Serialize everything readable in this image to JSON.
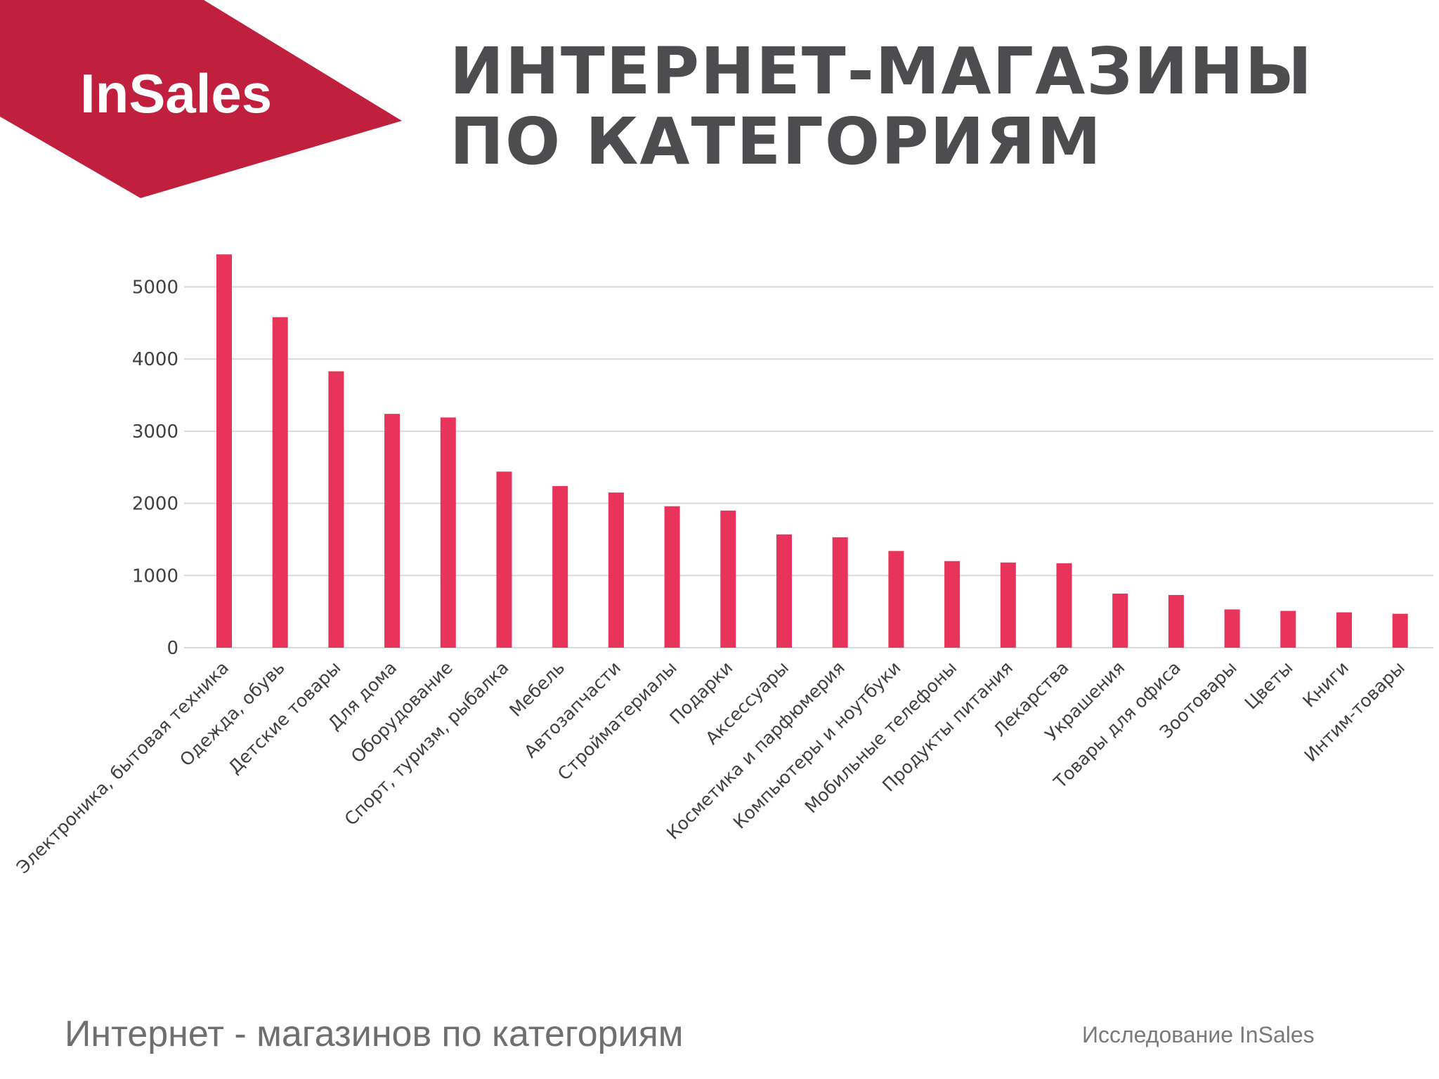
{
  "brand": {
    "logo_text": "InSales",
    "color": "#c0203d"
  },
  "title": "ИНТЕРНЕТ-МАГАЗИНЫ ПО КАТЕГОРИЯМ",
  "footer": {
    "caption": "Интернет - магазинов по категориям",
    "source": "Исследование InSales"
  },
  "chart_data": {
    "type": "bar",
    "categories": [
      "Электроника, бытовая техника",
      "Одежда, обувь",
      "Детские товары",
      "Для дома",
      "Оборудование",
      "Спорт, туризм, рыбалка",
      "Мебель",
      "Автозапчасти",
      "Стройматериалы",
      "Подарки",
      "Аксессуары",
      "Косметика и парфюмерия",
      "Компьютеры и ноутбуки",
      "Мобильные телефоны",
      "Продукты питания",
      "Лекарства",
      "Украшения",
      "Товары для офиса",
      "Зоотовары",
      "Цветы",
      "Книги",
      "Интим-товары"
    ],
    "values": [
      5450,
      4580,
      3830,
      3240,
      3190,
      2440,
      2240,
      2150,
      1960,
      1900,
      1570,
      1530,
      1340,
      1200,
      1180,
      1170,
      750,
      730,
      530,
      510,
      490,
      470
    ],
    "yticks": [
      0,
      1000,
      2000,
      3000,
      4000,
      5000
    ],
    "ylim": [
      0,
      5500
    ],
    "grid": true,
    "bar_color": "#e8335a",
    "grid_color": "#d9d9d9",
    "title": "",
    "xlabel": "",
    "ylabel": ""
  }
}
